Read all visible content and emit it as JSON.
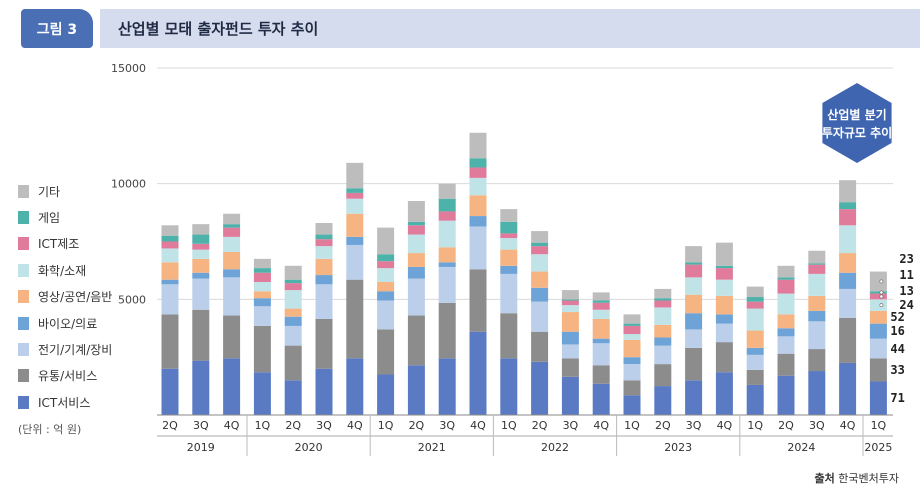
{
  "figure_label": "그림 3",
  "title": "산업별 모태 출자펀드 투자 추이",
  "unit_note": "(단위 : 억 원)",
  "source_label": "출처",
  "source_text": "한국벤처투자",
  "badge": {
    "line1": "산업별 분기",
    "line2": "투자규모 추이"
  },
  "colors": {
    "ICT서비스": "#5a7bc4",
    "유통/서비스": "#8c8c8c",
    "전기/기계/장비": "#bccfea",
    "바이오/의료": "#6ea3d8",
    "영상/공연/음반": "#f6b483",
    "화학/소재": "#bfe3e6",
    "ICT제조": "#e07b9c",
    "게임": "#4db3aa",
    "기타": "#bdbdbd",
    "title_bar": "#d4dcee",
    "badge": "#4a6fb5",
    "hexagon": "#3f64b0"
  },
  "chart_data": {
    "type": "bar",
    "stacked": true,
    "ylim": [
      0,
      15000
    ],
    "yticks": [
      5000,
      10000,
      15000
    ],
    "ytick_labels": [
      "5000",
      "10000",
      "15000"
    ],
    "grid": true,
    "legend_placement": "left",
    "categories": [
      "2Q",
      "3Q",
      "4Q",
      "1Q",
      "2Q",
      "3Q",
      "4Q",
      "1Q",
      "2Q",
      "3Q",
      "4Q",
      "1Q",
      "2Q",
      "3Q",
      "4Q",
      "1Q",
      "2Q",
      "3Q",
      "4Q",
      "1Q",
      "2Q",
      "3Q",
      "4Q",
      "1Q"
    ],
    "years": [
      {
        "label": "2019",
        "count": 3
      },
      {
        "label": "2020",
        "count": 4
      },
      {
        "label": "2021",
        "count": 4
      },
      {
        "label": "2022",
        "count": 4
      },
      {
        "label": "2023",
        "count": 4
      },
      {
        "label": "2024",
        "count": 4
      },
      {
        "label": "2025",
        "count": 1
      }
    ],
    "series": [
      {
        "name": "ICT서비스",
        "values": [
          2000,
          2350,
          2450,
          1850,
          1500,
          2000,
          2450,
          1750,
          2150,
          2450,
          3600,
          2450,
          2300,
          1650,
          1350,
          850,
          1250,
          1500,
          1850,
          1300,
          1700,
          1900,
          2250,
          1450
        ]
      },
      {
        "name": "유통/서비스",
        "values": [
          2350,
          2200,
          1850,
          2000,
          1500,
          2150,
          3400,
          1950,
          2150,
          2400,
          2700,
          1950,
          1300,
          800,
          800,
          650,
          950,
          1400,
          1300,
          650,
          950,
          950,
          1950,
          1000
        ]
      },
      {
        "name": "전기/기계/장비",
        "values": [
          1300,
          1350,
          1650,
          850,
          850,
          1500,
          1500,
          1250,
          1600,
          1550,
          1850,
          1700,
          1300,
          600,
          950,
          700,
          800,
          800,
          800,
          650,
          750,
          1200,
          1250,
          850
        ]
      },
      {
        "name": "바이오/의료",
        "values": [
          200,
          250,
          350,
          350,
          400,
          400,
          350,
          400,
          500,
          200,
          450,
          350,
          600,
          550,
          200,
          300,
          350,
          700,
          400,
          300,
          350,
          450,
          700,
          650
        ]
      },
      {
        "name": "영상/공연/음반",
        "values": [
          750,
          600,
          750,
          300,
          350,
          700,
          1000,
          400,
          600,
          650,
          900,
          700,
          700,
          850,
          850,
          750,
          550,
          800,
          800,
          750,
          600,
          650,
          850,
          550
        ]
      },
      {
        "name": "화학/소재",
        "values": [
          600,
          400,
          650,
          400,
          800,
          550,
          650,
          600,
          800,
          1150,
          750,
          500,
          750,
          300,
          400,
          250,
          750,
          750,
          700,
          950,
          900,
          950,
          1200,
          500
        ]
      },
      {
        "name": "ICT제조",
        "values": [
          300,
          250,
          400,
          400,
          300,
          300,
          250,
          300,
          400,
          400,
          450,
          200,
          350,
          200,
          300,
          350,
          300,
          550,
          500,
          300,
          600,
          400,
          700,
          250
        ]
      },
      {
        "name": "게임",
        "values": [
          250,
          400,
          150,
          200,
          150,
          200,
          200,
          300,
          150,
          550,
          400,
          500,
          150,
          50,
          100,
          100,
          100,
          100,
          100,
          200,
          100,
          50,
          300,
          100
        ]
      },
      {
        "name": "기타",
        "values": [
          450,
          450,
          450,
          400,
          600,
          500,
          1100,
          1150,
          900,
          650,
          1100,
          550,
          500,
          400,
          350,
          400,
          400,
          700,
          1000,
          450,
          500,
          550,
          950,
          850
        ]
      }
    ],
    "last_bar_labels": {
      "inside": [
        "71",
        "33",
        "44",
        "16",
        "52"
      ],
      "callout": [
        "24",
        "13",
        "11",
        "23"
      ]
    }
  }
}
